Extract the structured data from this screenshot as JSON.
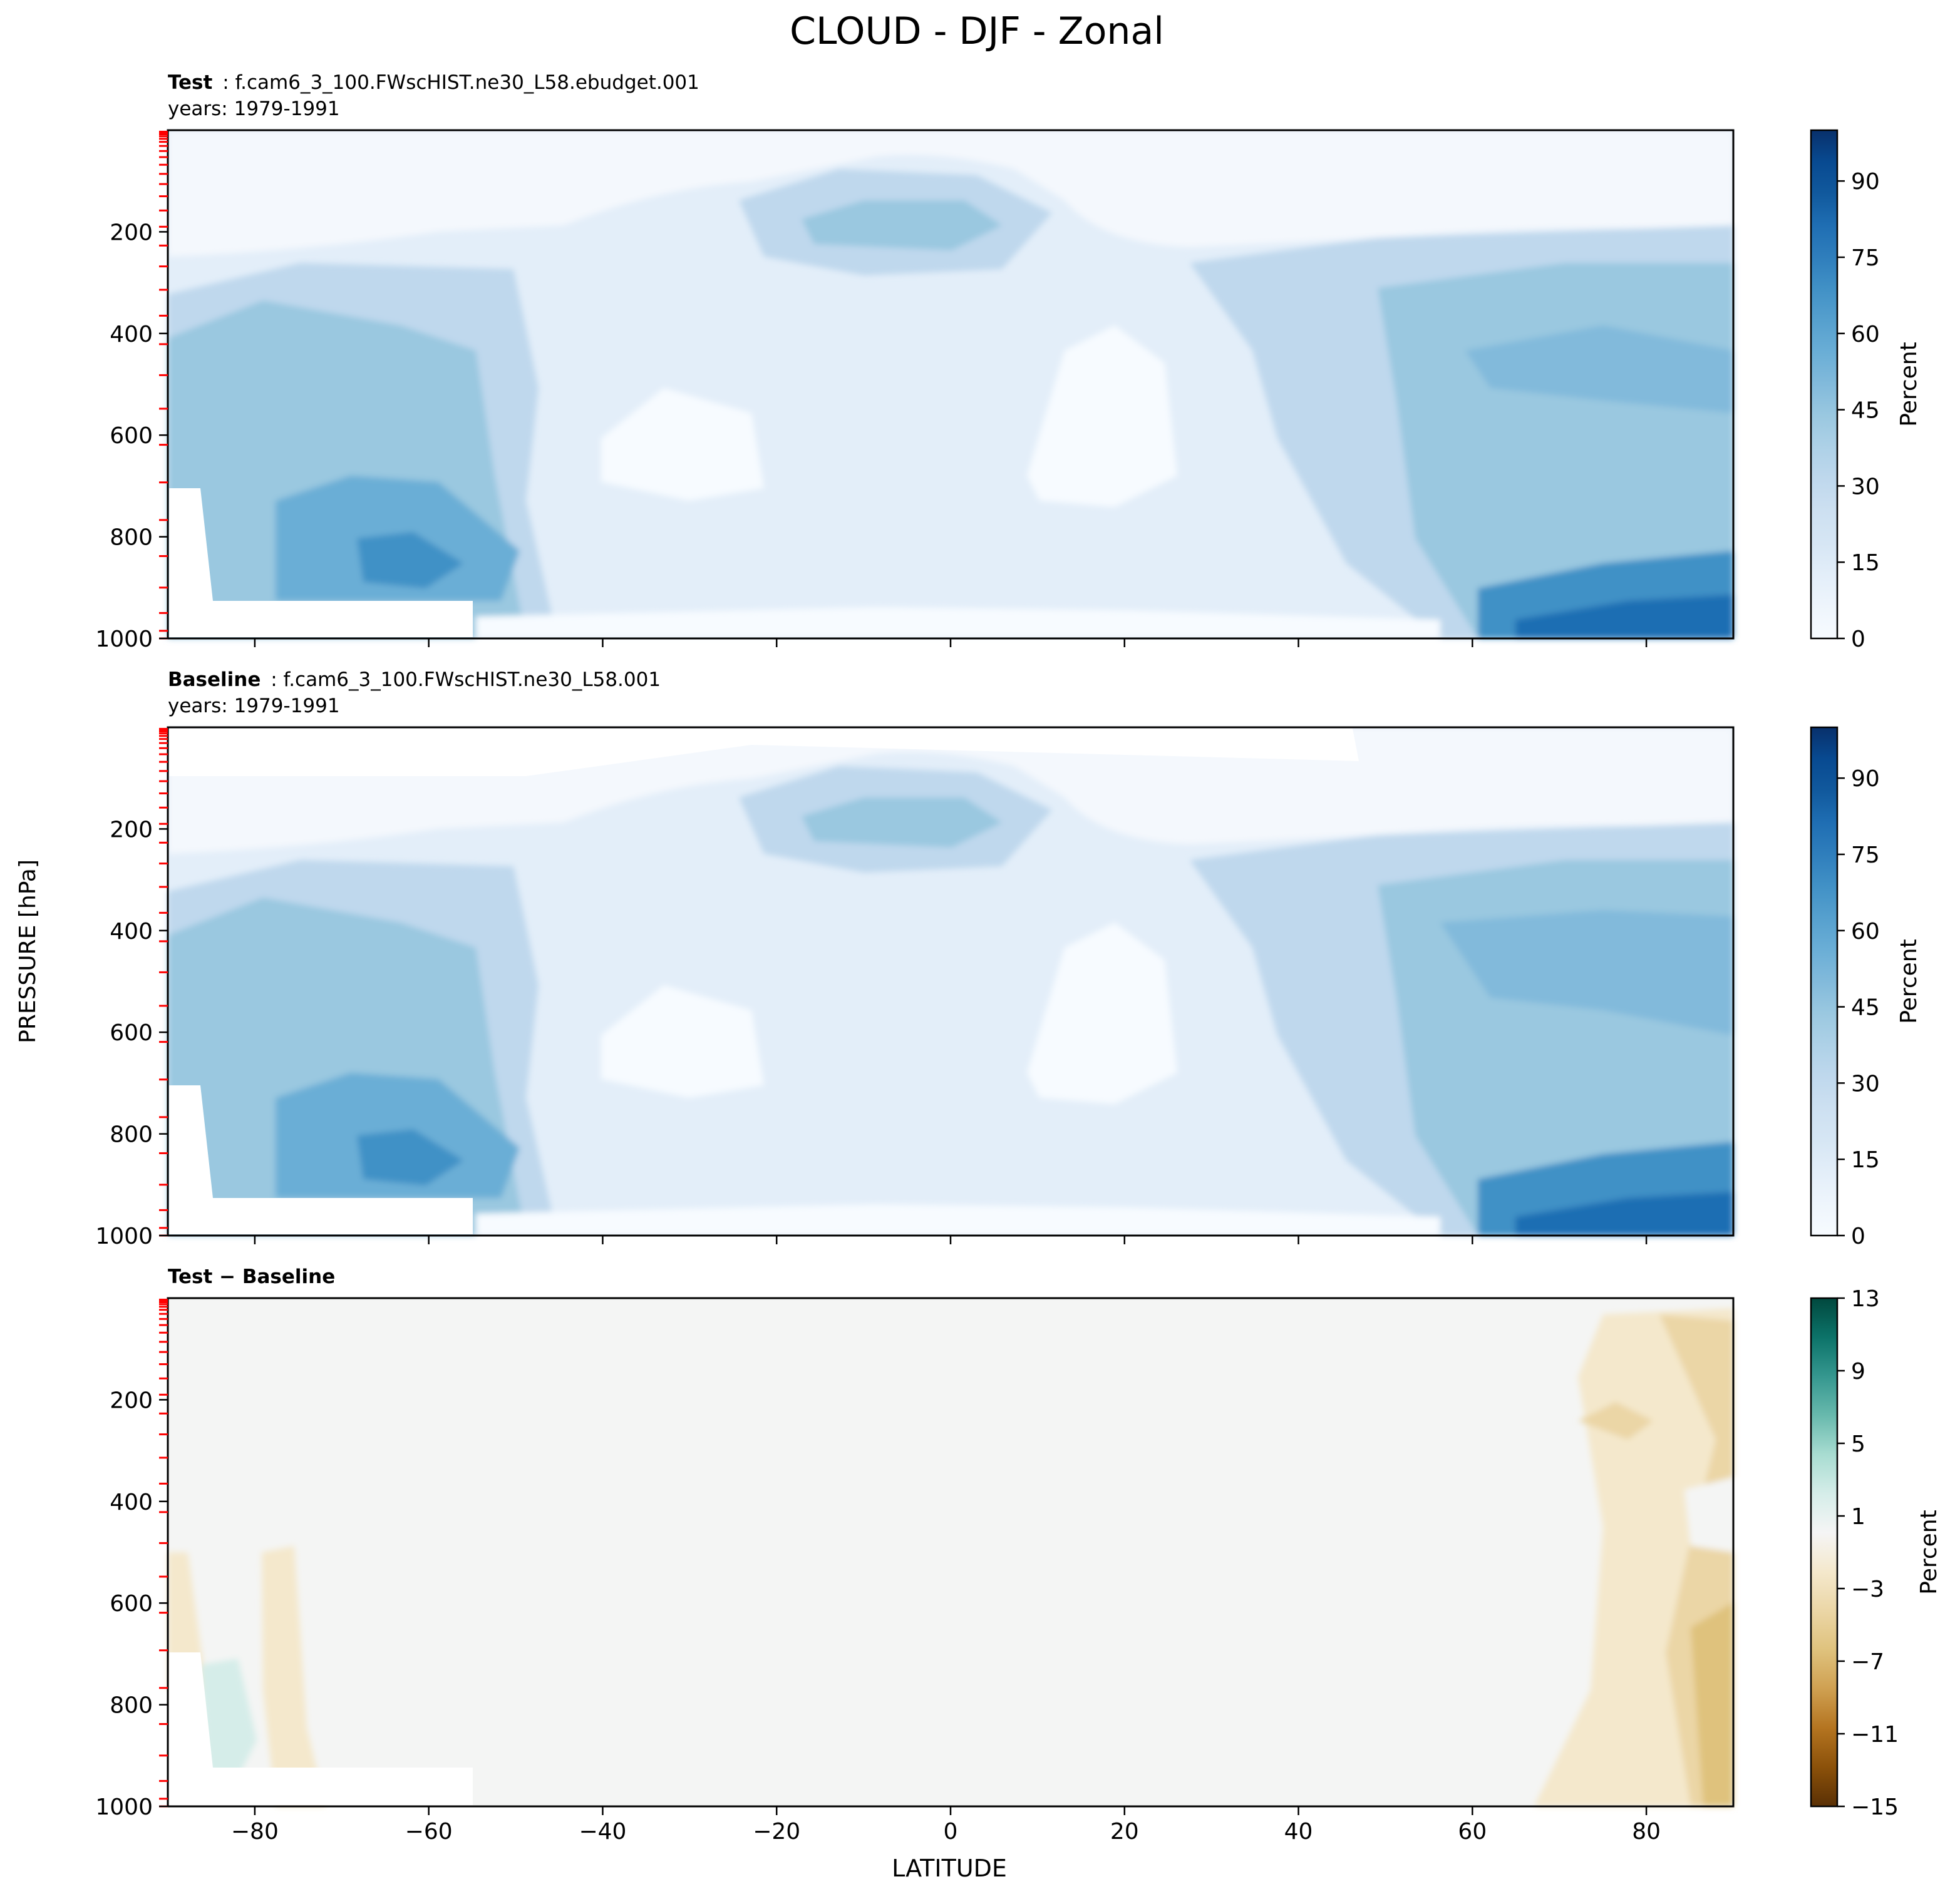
{
  "figure": {
    "title": "CLOUD - DJF - Zonal",
    "ylabel": "PRESSURE [hPa]",
    "xlabel": "LATITUDE"
  },
  "chart_data": [
    {
      "type": "heatmap",
      "panel": "test",
      "title_bold": "Test",
      "title_rest": ": f.cam6_3_100.FWscHIST.ne30_L58.ebudget.001",
      "subtitle": "years: 1979-1991",
      "x_ticks": [
        -80,
        -60,
        -40,
        -20,
        0,
        20,
        40,
        60,
        80
      ],
      "y_ticks": [
        200,
        400,
        600,
        800,
        1000
      ],
      "x_tick_labels": [
        "",
        "",
        "",
        "",
        "",
        "",
        "",
        "",
        ""
      ],
      "y_tick_labels": [
        "200",
        "400",
        "600",
        "800",
        "1000"
      ],
      "xlim": [
        -90,
        90
      ],
      "ylim": [
        1000,
        0
      ],
      "colorbar": {
        "label": "Percent",
        "range": [
          0,
          100
        ],
        "ticks": [
          0,
          15,
          30,
          45,
          60,
          75,
          90
        ],
        "tick_labels": [
          "0",
          "15",
          "30",
          "45",
          "60",
          "75",
          "90"
        ],
        "cmap": "Blues"
      }
    },
    {
      "type": "heatmap",
      "panel": "baseline",
      "title_bold": "Baseline",
      "title_rest": ": f.cam6_3_100.FWscHIST.ne30_L58.001",
      "subtitle": "years: 1979-1991",
      "x_ticks": [
        -80,
        -60,
        -40,
        -20,
        0,
        20,
        40,
        60,
        80
      ],
      "y_ticks": [
        200,
        400,
        600,
        800,
        1000
      ],
      "x_tick_labels": [
        "",
        "",
        "",
        "",
        "",
        "",
        "",
        "",
        ""
      ],
      "y_tick_labels": [
        "200",
        "400",
        "600",
        "800",
        "1000"
      ],
      "xlim": [
        -90,
        90
      ],
      "ylim": [
        1000,
        0
      ],
      "colorbar": {
        "label": "Percent",
        "range": [
          0,
          100
        ],
        "ticks": [
          0,
          15,
          30,
          45,
          60,
          75,
          90
        ],
        "tick_labels": [
          "0",
          "15",
          "30",
          "45",
          "60",
          "75",
          "90"
        ],
        "cmap": "Blues"
      }
    },
    {
      "type": "heatmap",
      "panel": "difference",
      "title_bold": "Test − Baseline",
      "title_rest": "",
      "subtitle": "",
      "x_ticks": [
        -80,
        -60,
        -40,
        -20,
        0,
        20,
        40,
        60,
        80
      ],
      "y_ticks": [
        200,
        400,
        600,
        800,
        1000
      ],
      "x_tick_labels": [
        "−80",
        "−60",
        "−40",
        "−20",
        "0",
        "20",
        "40",
        "60",
        "80"
      ],
      "y_tick_labels": [
        "200",
        "400",
        "600",
        "800",
        "1000"
      ],
      "xlim": [
        -90,
        90
      ],
      "ylim": [
        1000,
        0
      ],
      "colorbar": {
        "label": "Percent",
        "range": [
          -15,
          13
        ],
        "ticks": [
          -15,
          -11,
          -7,
          -3,
          1,
          5,
          9,
          13
        ],
        "tick_labels": [
          "−15",
          "−11",
          "−7",
          "−3",
          "1",
          "5",
          "9",
          "13"
        ],
        "cmap": "BrBG"
      }
    }
  ],
  "colors": {
    "blues": [
      "#f7fbff",
      "#eef5fc",
      "#e3eef9",
      "#d6e6f4",
      "#cde0f1",
      "#bfd8ed",
      "#aed1e7",
      "#9ac8e0",
      "#82badb",
      "#6aaed6",
      "#56a0ce",
      "#4191c6",
      "#2f7ebc",
      "#1f6eb3",
      "#11599d",
      "#084a91",
      "#08306b"
    ],
    "diverging": [
      "#5a3005",
      "#8b510a",
      "#b47420",
      "#cfa051",
      "#dfc27d",
      "#ebd6a6",
      "#f4e8cc",
      "#f5f5f5",
      "#d5ede9",
      "#a8dcd1",
      "#68b9ad",
      "#35978f",
      "#0c7369",
      "#01483e"
    ],
    "level_marks": "#ff0000"
  }
}
